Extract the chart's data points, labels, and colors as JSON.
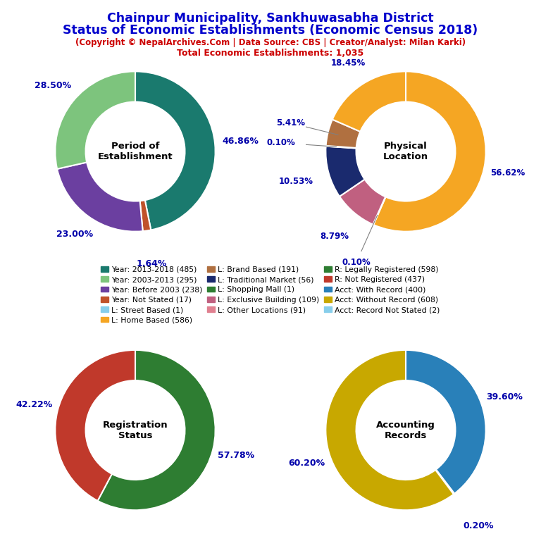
{
  "title_line1": "Chainpur Municipality, Sankhuwasabha District",
  "title_line2": "Status of Economic Establishments (Economic Census 2018)",
  "subtitle": "(Copyright © NepalArchives.Com | Data Source: CBS | Creator/Analyst: Milan Karki)",
  "total_line": "Total Economic Establishments: 1,035",
  "title_color": "#0000cc",
  "subtitle_color": "#cc0000",
  "label_color": "#0000aa",
  "bg_color": "#ffffff",
  "pie1": {
    "title": "Period of\nEstablishment",
    "values": [
      46.86,
      1.64,
      23.0,
      28.5
    ],
    "colors": [
      "#1a7a6e",
      "#c0522a",
      "#6b3fa0",
      "#7dc47d"
    ]
  },
  "pie2": {
    "title": "Physical\nLocation",
    "values": [
      56.62,
      0.1,
      8.79,
      10.53,
      0.1,
      5.41,
      18.45
    ],
    "colors": [
      "#f5a623",
      "#e08090",
      "#c06080",
      "#1a2a6e",
      "#2e7d32",
      "#b07040",
      "#f5a623"
    ]
  },
  "pie3": {
    "title": "Registration\nStatus",
    "values": [
      57.78,
      42.22
    ],
    "colors": [
      "#2e7d32",
      "#c0392b"
    ]
  },
  "pie4": {
    "title": "Accounting\nRecords",
    "values": [
      39.6,
      0.2,
      60.2
    ],
    "colors": [
      "#2980b9",
      "#87ceeb",
      "#c8a800"
    ]
  },
  "legend_items": [
    {
      "label": "Year: 2013-2018 (485)",
      "color": "#1a7a6e"
    },
    {
      "label": "Year: 2003-2013 (295)",
      "color": "#7dc47d"
    },
    {
      "label": "Year: Before 2003 (238)",
      "color": "#6b3fa0"
    },
    {
      "label": "Year: Not Stated (17)",
      "color": "#c0522a"
    },
    {
      "label": "L: Street Based (1)",
      "color": "#87ceeb"
    },
    {
      "label": "L: Home Based (586)",
      "color": "#f5a623"
    },
    {
      "label": "L: Brand Based (191)",
      "color": "#b07040"
    },
    {
      "label": "L: Traditional Market (56)",
      "color": "#1a2a6e"
    },
    {
      "label": "L: Shopping Mall (1)",
      "color": "#2e7d32"
    },
    {
      "label": "L: Exclusive Building (109)",
      "color": "#c06080"
    },
    {
      "label": "L: Other Locations (91)",
      "color": "#e08090"
    },
    {
      "label": "R: Legally Registered (598)",
      "color": "#2e7d32"
    },
    {
      "label": "R: Not Registered (437)",
      "color": "#c0392b"
    },
    {
      "label": "Acct: With Record (400)",
      "color": "#2980b9"
    },
    {
      "label": "Acct: Without Record (608)",
      "color": "#c8a800"
    },
    {
      "label": "Acct: Record Not Stated (2)",
      "color": "#87ceeb"
    }
  ]
}
